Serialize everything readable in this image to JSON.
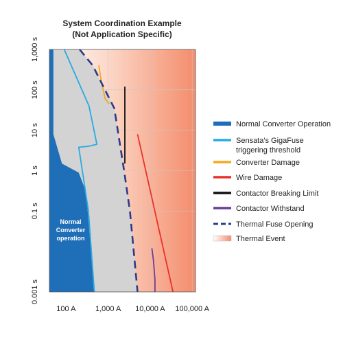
{
  "chart_data": {
    "type": "line",
    "title": "System Coordination Example",
    "subtitle": "(Not Application Specific)",
    "xlabel": "",
    "ylabel": "",
    "x_scale": "log",
    "y_scale": "log",
    "xlim": [
      40,
      120000
    ],
    "ylim": [
      0.001,
      1000
    ],
    "x_ticks": [
      {
        "value": 100,
        "label": "100 A"
      },
      {
        "value": 1000,
        "label": "1,000 A"
      },
      {
        "value": 10000,
        "label": "10,000 A"
      },
      {
        "value": 100000,
        "label": "100,000 A"
      }
    ],
    "y_ticks": [
      {
        "value": 1000,
        "label": "1,000 s"
      },
      {
        "value": 100,
        "label": "100 s"
      },
      {
        "value": 10,
        "label": "10 s"
      },
      {
        "value": 1,
        "label": "1 s"
      },
      {
        "value": 0.1,
        "label": "0.1 s"
      },
      {
        "value": 0.001,
        "label": "0.001 s"
      }
    ],
    "grid": true,
    "legend_position": "right",
    "inner_label": [
      "Normal",
      "Converter",
      "operation"
    ],
    "regions": [
      {
        "name": "Thermal Event",
        "type": "gradient",
        "color_start": "#ffffff",
        "color_end": "#f48c6c"
      },
      {
        "name": "Normal Converter Operation",
        "color": "#1f6fb8",
        "points": [
          [
            40,
            1000
          ],
          [
            50,
            1000
          ],
          [
            50,
            8
          ],
          [
            80,
            1.5
          ],
          [
            200,
            0.9
          ],
          [
            300,
            0.3
          ],
          [
            470,
            0.001
          ],
          [
            40,
            0.001
          ]
        ]
      },
      {
        "name": "Thermal Fuse Opening band",
        "color": "#d3d3d3",
        "points": [
          [
            50,
            1000
          ],
          [
            210,
            1000
          ],
          [
            430,
            400
          ],
          [
            1400,
            35
          ],
          [
            2400,
            1
          ],
          [
            3300,
            0.1
          ],
          [
            5000,
            0.001
          ],
          [
            470,
            0.001
          ],
          [
            300,
            0.3
          ],
          [
            200,
            0.9
          ],
          [
            80,
            1.5
          ],
          [
            50,
            8
          ]
        ]
      }
    ],
    "series": [
      {
        "name": "Sensata's GigaFuse triggering threshold",
        "color": "#27aae1",
        "style": "solid",
        "points": [
          [
            90,
            1000
          ],
          [
            350,
            40
          ],
          [
            540,
            4.5
          ],
          [
            330,
            4
          ],
          [
            200,
            3.8
          ],
          [
            340,
            0.1
          ],
          [
            470,
            0.001
          ]
        ]
      },
      {
        "name": "Converter Damage",
        "color": "#f7a81b",
        "style": "solid",
        "points": [
          [
            600,
            400
          ],
          [
            700,
            150
          ],
          [
            850,
            60
          ],
          [
            1050,
            45
          ]
        ]
      },
      {
        "name": "Wire Damage",
        "color": "#e8312a",
        "style": "solid",
        "points": [
          [
            5000,
            8
          ],
          [
            35000,
            0.001
          ]
        ]
      },
      {
        "name": "Contactor Breaking Limit",
        "color": "#111111",
        "style": "solid",
        "points": [
          [
            2500,
            120
          ],
          [
            2500,
            1.5
          ]
        ]
      },
      {
        "name": "Contactor Withstand",
        "color": "#6a3d9a",
        "style": "solid",
        "points": [
          [
            11000,
            0.012
          ],
          [
            12000,
            0.006
          ],
          [
            13000,
            0.002
          ],
          [
            13000,
            0.001
          ]
        ]
      },
      {
        "name": "Thermal Fuse Opening",
        "color": "#2b3a8a",
        "style": "dashed",
        "points": [
          [
            210,
            1000
          ],
          [
            430,
            400
          ],
          [
            1400,
            35
          ],
          [
            2400,
            1
          ],
          [
            3300,
            0.1
          ],
          [
            5000,
            0.001
          ]
        ]
      }
    ],
    "legend": [
      {
        "label": "Normal Converter Operation",
        "color": "#1f6fb8",
        "kind": "fill"
      },
      {
        "label": "Sensata's GigaFuse",
        "label2": "triggering threshold",
        "color": "#27aae1",
        "kind": "line"
      },
      {
        "label": "Converter Damage",
        "color": "#f7a81b",
        "kind": "line"
      },
      {
        "label": "Wire Damage",
        "color": "#e8312a",
        "kind": "line"
      },
      {
        "label": "Contactor Breaking Limit",
        "color": "#111111",
        "kind": "line"
      },
      {
        "label": "Contactor Withstand",
        "color": "#6a3d9a",
        "kind": "line"
      },
      {
        "label": "Thermal Fuse Opening",
        "color": "#2b3a8a",
        "kind": "dashed"
      },
      {
        "label": "Thermal Event",
        "color": "#f48c6c",
        "kind": "gradient"
      }
    ]
  }
}
